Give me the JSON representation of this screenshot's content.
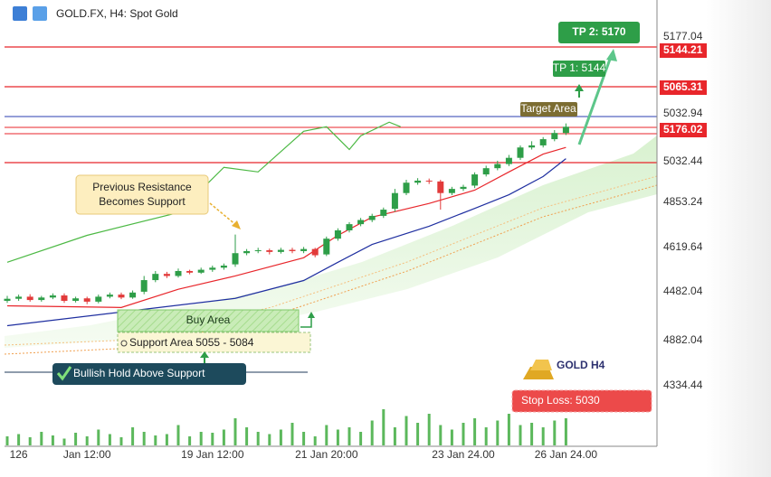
{
  "header": {
    "title": "GOLD.FX, H4:  Spot Gold"
  },
  "chart_data": {
    "type": "candlestick",
    "categories": [
      null,
      "126",
      null,
      null,
      null,
      null,
      null,
      "Jan 12:00",
      null,
      null,
      null,
      null,
      null,
      null,
      null,
      null,
      null,
      null,
      "19 Jan 12:00",
      null,
      null,
      null,
      null,
      null,
      null,
      null,
      null,
      null,
      "21 Jan 20:00",
      null,
      null,
      null,
      null,
      null,
      null,
      null,
      null,
      null,
      null,
      null,
      "23 Jan 24.00",
      null,
      null,
      null,
      null,
      null,
      null,
      null,
      null,
      "26 Jan 24.00"
    ],
    "open": [
      4540,
      4545,
      4550,
      4542,
      4548,
      4553,
      4540,
      4546,
      4538,
      4550,
      4555,
      4548,
      4562,
      4590,
      4605,
      4600,
      4612,
      4608,
      4615,
      4620,
      4628,
      4655,
      4660,
      4662,
      4658,
      4663,
      4660,
      4665,
      4652,
      4690,
      4710,
      4725,
      4735,
      4745,
      4762,
      4800,
      4825,
      4830,
      4828,
      4800,
      4810,
      4818,
      4845,
      4860,
      4870,
      4885,
      4910,
      4915,
      4930,
      4945
    ],
    "high": [
      4552,
      4555,
      4556,
      4552,
      4558,
      4558,
      4550,
      4550,
      4555,
      4560,
      4560,
      4565,
      4600,
      4612,
      4610,
      4618,
      4615,
      4620,
      4625,
      4630,
      4700,
      4665,
      4668,
      4666,
      4668,
      4668,
      4670,
      4668,
      4695,
      4715,
      4730,
      4740,
      4750,
      4765,
      4810,
      4832,
      4836,
      4835,
      4832,
      4815,
      4820,
      4850,
      4866,
      4878,
      4892,
      4915,
      4925,
      4935,
      4952,
      4968
    ],
    "low": [
      4535,
      4540,
      4538,
      4538,
      4544,
      4535,
      4536,
      4532,
      4534,
      4546,
      4544,
      4545,
      4556,
      4585,
      4595,
      4596,
      4604,
      4605,
      4610,
      4615,
      4622,
      4650,
      4655,
      4652,
      4654,
      4655,
      4655,
      4645,
      4648,
      4685,
      4705,
      4720,
      4730,
      4740,
      4755,
      4795,
      4820,
      4822,
      4760,
      4795,
      4805,
      4812,
      4840,
      4855,
      4865,
      4880,
      4905,
      4910,
      4925,
      4940
    ],
    "close": [
      4545,
      4550,
      4542,
      4548,
      4553,
      4540,
      4546,
      4538,
      4550,
      4555,
      4548,
      4560,
      4590,
      4605,
      4600,
      4612,
      4608,
      4615,
      4620,
      4625,
      4655,
      4660,
      4662,
      4658,
      4663,
      4660,
      4665,
      4650,
      4690,
      4710,
      4725,
      4735,
      4745,
      4760,
      4800,
      4825,
      4830,
      4828,
      4800,
      4810,
      4815,
      4845,
      4860,
      4870,
      4885,
      4910,
      4915,
      4930,
      4945,
      4960
    ],
    "up_color": "#2e9e48",
    "down_color": "#e23a3a",
    "ylim": [
      4200,
      5220
    ],
    "volume": [
      20,
      25,
      18,
      30,
      22,
      15,
      28,
      20,
      35,
      25,
      18,
      40,
      30,
      22,
      25,
      45,
      20,
      30,
      28,
      35,
      60,
      40,
      30,
      25,
      35,
      50,
      30,
      20,
      45,
      35,
      40,
      30,
      55,
      80,
      40,
      65,
      50,
      70,
      45,
      35,
      50,
      60,
      40,
      55,
      70,
      45,
      50,
      40,
      55,
      60
    ],
    "volume_color": "#5cb85c",
    "lines": [
      {
        "color": "#e8262b",
        "x": [
          0,
          10,
          15,
          20,
          26,
          29,
          32,
          37,
          41,
          44,
          47,
          49
        ],
        "values": [
          4528,
          4524,
          4568,
          4600,
          4644,
          4698,
          4742,
          4775,
          4807,
          4851,
          4894,
          4910
        ]
      },
      {
        "color": "#1f2fa0",
        "x": [
          0,
          10,
          20,
          26,
          29,
          32,
          37,
          41,
          44,
          47,
          49
        ],
        "values": [
          4480,
          4513,
          4546,
          4589,
          4633,
          4676,
          4720,
          4763,
          4796,
          4840,
          4883
        ]
      },
      {
        "color": "#4cb944",
        "x": [
          0,
          7,
          15,
          19,
          22,
          26,
          28,
          30,
          31,
          33.5,
          34.5
        ],
        "values": [
          4633,
          4698,
          4753,
          4862,
          4851,
          4949,
          4960,
          4905,
          4938,
          4971,
          4960
        ]
      }
    ],
    "price_scale_labels": [
      "5177.04",
      "5032.94",
      "5032.44",
      "4853.24",
      "4619.64",
      "4482.04",
      "4882.04",
      "4334.44"
    ],
    "price_tags": [
      "5144.21",
      "5065.31",
      "5176.02"
    ],
    "annotations": {
      "tp2": "TP 2: 5170",
      "tp1": "TP 1: 5144",
      "target": "Target Area",
      "resistance": [
        "Previous Resistance",
        "Becomes Support"
      ],
      "buy": "Buy Area",
      "support": "Support Area  5055 - 5084",
      "bullish": "Bullish Hold Above Support",
      "brand": "GOLD H4",
      "stop": "Stop Loss: 5030"
    }
  }
}
